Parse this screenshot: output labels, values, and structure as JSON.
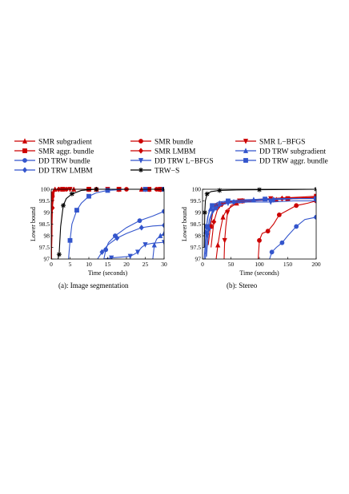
{
  "legend": [
    {
      "label": "SMR subgradient",
      "color": "#cc0000",
      "marker": "triangle-up"
    },
    {
      "label": "SMR bundle",
      "color": "#cc0000",
      "marker": "circle"
    },
    {
      "label": "SMR L−BFGS",
      "color": "#cc0000",
      "marker": "triangle-down"
    },
    {
      "label": "SMR aggr. bundle",
      "color": "#cc0000",
      "marker": "square"
    },
    {
      "label": "SMR LMBM",
      "color": "#cc0000",
      "marker": "diamond"
    },
    {
      "label": "DD TRW subgradient",
      "color": "#3355cc",
      "marker": "triangle-up"
    },
    {
      "label": "DD TRW bundle",
      "color": "#3355cc",
      "marker": "circle"
    },
    {
      "label": "DD TRW L−BFGS",
      "color": "#3355cc",
      "marker": "triangle-down"
    },
    {
      "label": "DD TRW aggr. bundle",
      "color": "#3355cc",
      "marker": "square"
    },
    {
      "label": "DD TRW LMBM",
      "color": "#3355cc",
      "marker": "diamond"
    },
    {
      "label": "TRW−S",
      "color": "#000000",
      "marker": "star"
    }
  ],
  "chart_data": [
    {
      "type": "line",
      "caption": "(a): Image segmentation",
      "xlabel": "Time (seconds)",
      "ylabel": "Lower bound",
      "xlim": [
        0,
        30
      ],
      "ylim": [
        97,
        100
      ],
      "xticks": [
        "0",
        "5",
        "10",
        "15",
        "20",
        "25",
        "30"
      ],
      "yticks": [
        "97",
        "97.5",
        "98",
        "98.5",
        "99",
        "99.5",
        "100"
      ],
      "series": [
        {
          "name": "SMR subgradient",
          "color": "#cc0000",
          "marker": "triangle-up",
          "points": [
            [
              0.05,
              97
            ],
            [
              0.2,
              99.6
            ],
            [
              0.5,
              99.95
            ],
            [
              1,
              100
            ],
            [
              3,
              100
            ],
            [
              6,
              100
            ],
            [
              9,
              100
            ],
            [
              12,
              100
            ],
            [
              15,
              100
            ],
            [
              18,
              100
            ],
            [
              21,
              100
            ],
            [
              24,
              100
            ],
            [
              27,
              100
            ],
            [
              29,
              100
            ]
          ]
        },
        {
          "name": "SMR bundle",
          "color": "#cc0000",
          "marker": "circle",
          "points": [
            [
              0.05,
              97
            ],
            [
              0.3,
              99.7
            ],
            [
              1,
              100
            ],
            [
              4,
              100
            ],
            [
              8,
              100
            ],
            [
              12,
              100
            ],
            [
              16,
              100
            ],
            [
              20,
              100
            ],
            [
              24,
              100
            ],
            [
              28,
              100
            ]
          ]
        },
        {
          "name": "SMR L−BFGS",
          "color": "#cc0000",
          "marker": "triangle-down",
          "points": [
            [
              0.05,
              97
            ],
            [
              0.3,
              99.8
            ],
            [
              1,
              100
            ],
            [
              5,
              100
            ],
            [
              10,
              100
            ],
            [
              15,
              100
            ],
            [
              20,
              100
            ],
            [
              25,
              100
            ],
            [
              29,
              100
            ]
          ]
        },
        {
          "name": "SMR aggr. bundle",
          "color": "#cc0000",
          "marker": "square",
          "points": [
            [
              0.05,
              97
            ],
            [
              0.2,
              99.8
            ],
            [
              1,
              99.95
            ],
            [
              3,
              100
            ],
            [
              6,
              100
            ],
            [
              10,
              100
            ],
            [
              14,
              100
            ],
            [
              18,
              100
            ],
            [
              22,
              100
            ],
            [
              26,
              100
            ],
            [
              29,
              100
            ]
          ]
        },
        {
          "name": "SMR LMBM",
          "color": "#cc0000",
          "marker": "diamond",
          "points": [
            [
              0.05,
              97
            ],
            [
              0.3,
              99.2
            ],
            [
              0.8,
              99.9
            ],
            [
              2,
              100
            ],
            [
              6,
              100
            ],
            [
              10,
              100
            ],
            [
              14,
              100
            ],
            [
              18,
              100
            ],
            [
              22,
              100
            ],
            [
              26,
              100
            ],
            [
              29,
              100
            ]
          ]
        },
        {
          "name": "DD TRW subgradient",
          "color": "#3355cc",
          "marker": "triangle-up",
          "points": [
            [
              27,
              97
            ],
            [
              27.4,
              97.6
            ],
            [
              28,
              97.85
            ],
            [
              29,
              98.0
            ],
            [
              30,
              98.1
            ]
          ]
        },
        {
          "name": "DD TRW bundle",
          "color": "#3355cc",
          "marker": "circle",
          "points": [
            [
              14,
              97
            ],
            [
              14.5,
              97.4
            ],
            [
              15.2,
              97.7
            ],
            [
              17,
              98.0
            ],
            [
              20,
              98.35
            ],
            [
              23.5,
              98.65
            ],
            [
              27,
              98.85
            ],
            [
              30,
              99.05
            ]
          ]
        },
        {
          "name": "DD TRW L−BFGS",
          "color": "#3355cc",
          "marker": "triangle-down",
          "points": [
            [
              14,
              97
            ],
            [
              16,
              97.05
            ],
            [
              20,
              97.1
            ],
            [
              21,
              97.12
            ],
            [
              22,
              97.2
            ],
            [
              23,
              97.3
            ],
            [
              24,
              97.5
            ],
            [
              25,
              97.62
            ],
            [
              27,
              97.68
            ],
            [
              30,
              97.72
            ]
          ]
        },
        {
          "name": "DD TRW aggr. bundle",
          "color": "#3355cc",
          "marker": "square",
          "points": [
            [
              4.6,
              97
            ],
            [
              5,
              97.8
            ],
            [
              5.5,
              98.5
            ],
            [
              6.8,
              99.1
            ],
            [
              8,
              99.4
            ],
            [
              10,
              99.7
            ],
            [
              12,
              99.85
            ],
            [
              15,
              99.95
            ],
            [
              20,
              100
            ],
            [
              25,
              100
            ],
            [
              30,
              100
            ]
          ]
        },
        {
          "name": "DD TRW LMBM",
          "color": "#3355cc",
          "marker": "diamond",
          "points": [
            [
              12.3,
              97
            ],
            [
              13.5,
              97.3
            ],
            [
              15,
              97.6
            ],
            [
              17.5,
              97.9
            ],
            [
              20,
              98.1
            ],
            [
              24,
              98.35
            ],
            [
              27,
              98.42
            ],
            [
              30,
              98.45
            ]
          ]
        },
        {
          "name": "TRW−S",
          "color": "#000000",
          "marker": "star",
          "points": [
            [
              1.8,
              97
            ],
            [
              2.1,
              97.2
            ],
            [
              2.5,
              98.4
            ],
            [
              3.2,
              99.3
            ],
            [
              4,
              99.6
            ],
            [
              5.5,
              99.8
            ],
            [
              8,
              99.95
            ],
            [
              12,
              100
            ],
            [
              20,
              100
            ],
            [
              30,
              100
            ]
          ]
        }
      ]
    },
    {
      "type": "line",
      "caption": "(b): Stereo",
      "xlabel": "Time (seconds)",
      "ylabel": "Lower bound",
      "xlim": [
        0,
        200
      ],
      "ylim": [
        97,
        100
      ],
      "xticks": [
        "0",
        "50",
        "100",
        "150",
        "200"
      ],
      "yticks": [
        "97",
        "97.5",
        "98",
        "98.5",
        "99",
        "99.5",
        "100"
      ],
      "series": [
        {
          "name": "SMR subgradient",
          "color": "#cc0000",
          "marker": "triangle-up",
          "points": [
            [
              24,
              97
            ],
            [
              27,
              97.6
            ],
            [
              31,
              98.2
            ],
            [
              36,
              98.8
            ],
            [
              42,
              99.1
            ],
            [
              60,
              99.4
            ],
            [
              90,
              99.5
            ],
            [
              130,
              99.55
            ],
            [
              170,
              99.6
            ],
            [
              200,
              99.6
            ]
          ]
        },
        {
          "name": "SMR bundle",
          "color": "#cc0000",
          "marker": "circle",
          "points": [
            [
              98,
              97
            ],
            [
              100,
              97.8
            ],
            [
              105,
              98.1
            ],
            [
              115,
              98.2
            ],
            [
              125,
              98.5
            ],
            [
              135,
              98.9
            ],
            [
              150,
              99.1
            ],
            [
              165,
              99.3
            ],
            [
              185,
              99.4
            ],
            [
              200,
              99.5
            ]
          ]
        },
        {
          "name": "SMR L−BFGS",
          "color": "#cc0000",
          "marker": "triangle-down",
          "points": [
            [
              38,
              97
            ],
            [
              39,
              97.8
            ],
            [
              41,
              98.4
            ],
            [
              44,
              99.0
            ],
            [
              50,
              99.3
            ],
            [
              65,
              99.5
            ],
            [
              85,
              99.55
            ],
            [
              120,
              99.6
            ],
            [
              160,
              99.65
            ],
            [
              200,
              99.7
            ]
          ]
        },
        {
          "name": "SMR aggr. bundle",
          "color": "#cc0000",
          "marker": "square",
          "points": [
            [
              10,
              97.6
            ],
            [
              14,
              98.4
            ],
            [
              18,
              99.0
            ],
            [
              25,
              99.3
            ],
            [
              40,
              99.45
            ],
            [
              70,
              99.5
            ],
            [
              110,
              99.55
            ],
            [
              150,
              99.6
            ],
            [
              200,
              99.65
            ]
          ]
        },
        {
          "name": "SMR LMBM",
          "color": "#cc0000",
          "marker": "diamond",
          "points": [
            [
              15,
              97.5
            ],
            [
              20,
              98.6
            ],
            [
              26,
              99.1
            ],
            [
              34,
              99.35
            ],
            [
              45,
              99.45
            ],
            [
              70,
              99.5
            ],
            [
              100,
              99.55
            ],
            [
              140,
              99.6
            ],
            [
              200,
              99.65
            ]
          ]
        },
        {
          "name": "DD TRW subgradient",
          "color": "#3355cc",
          "marker": "triangle-up",
          "points": [
            [
              3,
              97
            ],
            [
              6,
              98.2
            ],
            [
              9,
              98.8
            ],
            [
              14,
              99.15
            ],
            [
              20,
              99.3
            ],
            [
              30,
              99.4
            ],
            [
              50,
              99.5
            ],
            [
              90,
              99.55
            ],
            [
              140,
              99.6
            ],
            [
              200,
              99.6
            ]
          ]
        },
        {
          "name": "DD TRW bundle",
          "color": "#3355cc",
          "marker": "circle",
          "points": [
            [
              118,
              97
            ],
            [
              122,
              97.3
            ],
            [
              130,
              97.5
            ],
            [
              140,
              97.7
            ],
            [
              150,
              98.0
            ],
            [
              165,
              98.4
            ],
            [
              180,
              98.7
            ],
            [
              200,
              98.8
            ]
          ]
        },
        {
          "name": "DD TRW L−BFGS",
          "color": "#3355cc",
          "marker": "triangle-down",
          "points": [
            [
              5,
              97
            ],
            [
              8,
              98.0
            ],
            [
              12,
              98.7
            ],
            [
              18,
              99.1
            ],
            [
              28,
              99.3
            ],
            [
              45,
              99.4
            ],
            [
              80,
              99.45
            ],
            [
              120,
              99.45
            ],
            [
              160,
              99.5
            ],
            [
              200,
              99.5
            ]
          ]
        },
        {
          "name": "DD TRW aggr. bundle",
          "color": "#3355cc",
          "marker": "square",
          "points": [
            [
              4,
              97.2
            ],
            [
              7,
              98.4
            ],
            [
              11,
              99.0
            ],
            [
              17,
              99.3
            ],
            [
              28,
              99.45
            ],
            [
              45,
              99.5
            ],
            [
              75,
              99.55
            ],
            [
              110,
              99.58
            ],
            [
              150,
              99.6
            ],
            [
              200,
              99.6
            ]
          ]
        },
        {
          "name": "DD TRW LMBM",
          "color": "#3355cc",
          "marker": "diamond",
          "points": [
            [
              7,
              97.1
            ],
            [
              11,
              98.3
            ],
            [
              16,
              98.9
            ],
            [
              24,
              99.2
            ],
            [
              36,
              99.35
            ],
            [
              55,
              99.45
            ],
            [
              85,
              99.5
            ],
            [
              125,
              99.55
            ],
            [
              170,
              99.6
            ],
            [
              200,
              99.6
            ]
          ]
        },
        {
          "name": "TRW−S",
          "color": "#000000",
          "marker": "star",
          "points": [
            [
              3,
              97.5
            ],
            [
              4,
              99.0
            ],
            [
              5,
              99.5
            ],
            [
              8,
              99.8
            ],
            [
              15,
              99.9
            ],
            [
              30,
              99.95
            ],
            [
              60,
              99.97
            ],
            [
              100,
              99.98
            ],
            [
              150,
              99.99
            ],
            [
              200,
              100
            ]
          ]
        }
      ]
    }
  ]
}
